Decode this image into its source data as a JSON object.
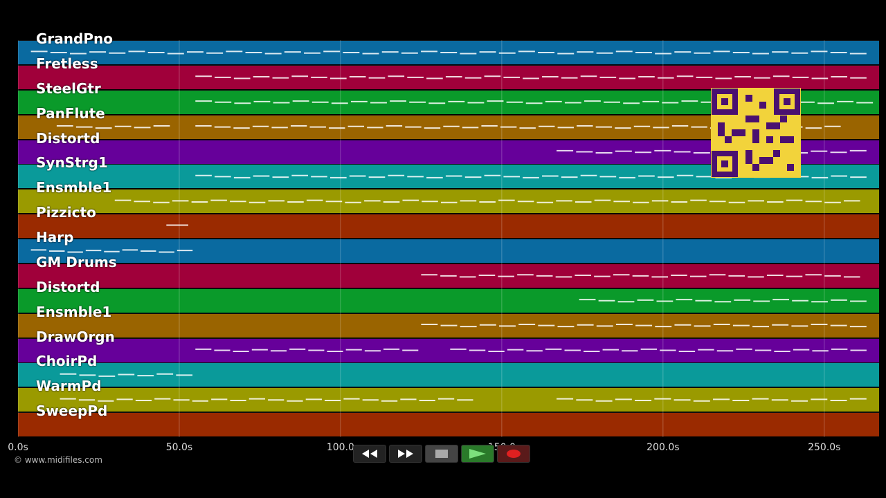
{
  "tracks": [
    {
      "name": "GrandPno",
      "color": "#0a6aa0"
    },
    {
      "name": "Fretless",
      "color": "#a0003a"
    },
    {
      "name": "SteelGtr",
      "color": "#0a9a2a"
    },
    {
      "name": "PanFlute",
      "color": "#9a6400"
    },
    {
      "name": "Distortd",
      "color": "#66009a"
    },
    {
      "name": "SynStrg1",
      "color": "#0a9a9a"
    },
    {
      "name": "Ensmble1",
      "color": "#9a9a00"
    },
    {
      "name": "Pizzicto",
      "color": "#9a2a00"
    },
    {
      "name": "Harp",
      "color": "#0a6aa0"
    },
    {
      "name": "GM Drums",
      "color": "#a0003a"
    },
    {
      "name": "Distortd",
      "color": "#0a9a2a"
    },
    {
      "name": "Ensmble1",
      "color": "#9a6400"
    },
    {
      "name": "DrawOrgn",
      "color": "#66009a"
    },
    {
      "name": "ChoirPd",
      "color": "#0a9a9a"
    },
    {
      "name": "WarmPd",
      "color": "#9a9a00"
    },
    {
      "name": "SweepPd",
      "color": "#9a2a00"
    }
  ],
  "timeline": {
    "ticks": [
      "0.0s",
      "50.0s",
      "100.0",
      "150.0",
      "200.0s",
      "250.0s"
    ],
    "tick_seconds": [
      0,
      50,
      100,
      150,
      200,
      250
    ],
    "max_seconds": 267
  },
  "copyright": "© www.midifiles.com",
  "transport": {
    "rewind_icon": "rewind-icon",
    "forward_icon": "fast-forward-icon",
    "stop_icon": "stop-icon",
    "play_icon": "play-icon",
    "record_icon": "record-icon"
  },
  "notes": [
    {
      "track": 0,
      "start": 4,
      "end": 264
    },
    {
      "track": 1,
      "start": 55,
      "end": 264
    },
    {
      "track": 2,
      "start": 55,
      "end": 266
    },
    {
      "track": 3,
      "start": 12,
      "end": 48
    },
    {
      "track": 3,
      "start": 55,
      "end": 256
    },
    {
      "track": 4,
      "start": 167,
      "end": 264
    },
    {
      "track": 5,
      "start": 55,
      "end": 264
    },
    {
      "track": 6,
      "start": 30,
      "end": 262
    },
    {
      "track": 7,
      "start": 46,
      "end": 54
    },
    {
      "track": 8,
      "start": 4,
      "end": 55
    },
    {
      "track": 9,
      "start": 125,
      "end": 262
    },
    {
      "track": 10,
      "start": 174,
      "end": 264
    },
    {
      "track": 11,
      "start": 125,
      "end": 264
    },
    {
      "track": 12,
      "start": 55,
      "end": 125
    },
    {
      "track": 12,
      "start": 134,
      "end": 264
    },
    {
      "track": 13,
      "start": 13,
      "end": 55
    },
    {
      "track": 14,
      "start": 13,
      "end": 142
    },
    {
      "track": 14,
      "start": 167,
      "end": 264
    }
  ]
}
